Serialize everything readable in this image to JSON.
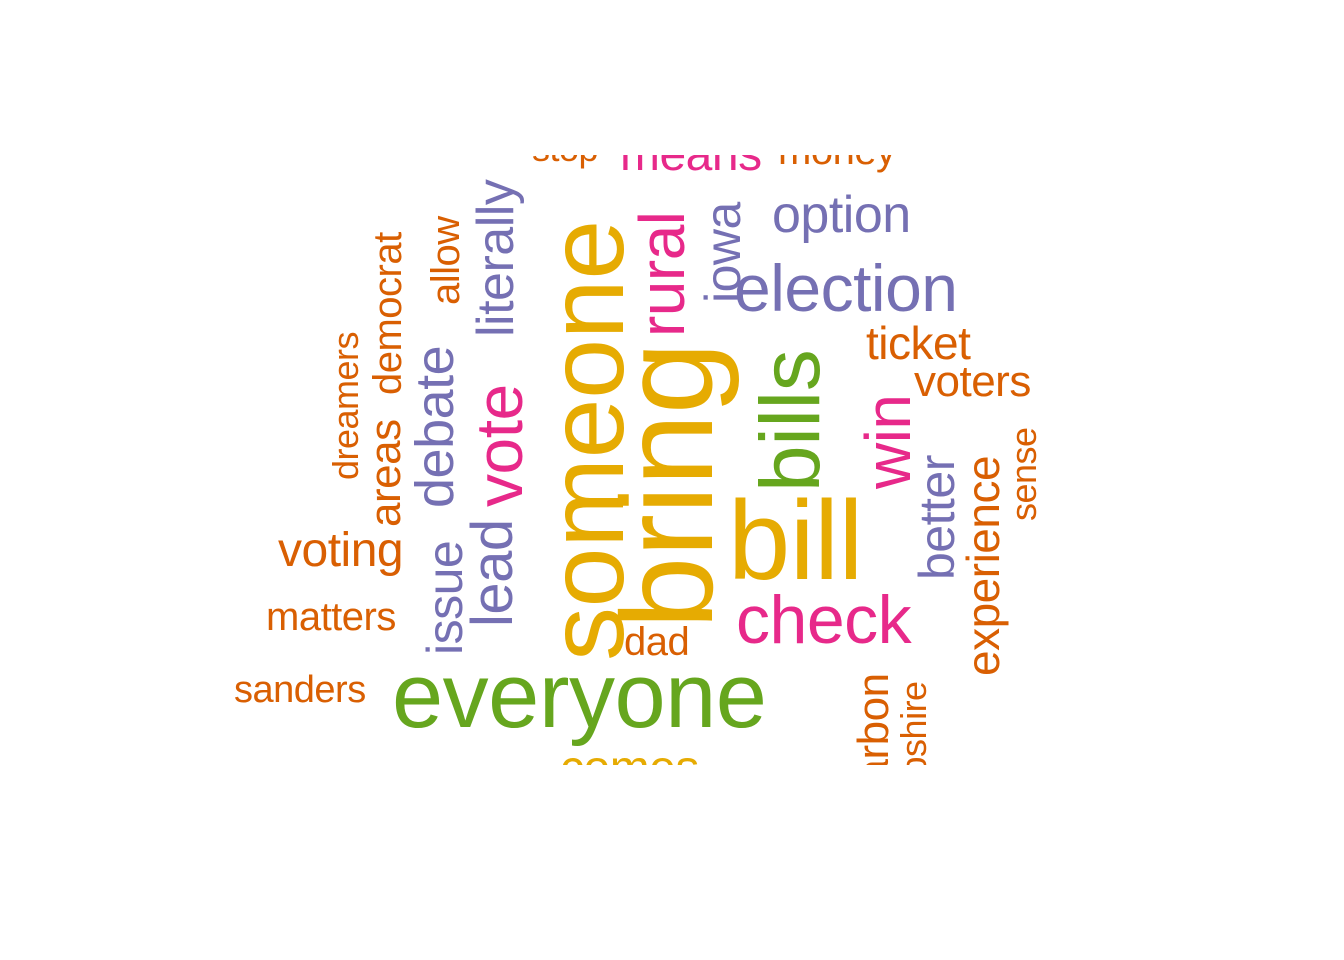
{
  "words": [
    {
      "text": "someone",
      "color": "#e6ab02"
    },
    {
      "text": "bring",
      "color": "#e6ab02"
    },
    {
      "text": "everyone",
      "color": "#66a61e"
    },
    {
      "text": "bill",
      "color": "#e6ab02"
    },
    {
      "text": "bills",
      "color": "#66a61e"
    },
    {
      "text": "election",
      "color": "#7570b3"
    },
    {
      "text": "check",
      "color": "#e7298a"
    },
    {
      "text": "vote",
      "color": "#e7298a"
    },
    {
      "text": "rural",
      "color": "#e7298a"
    },
    {
      "text": "win",
      "color": "#e7298a"
    },
    {
      "text": "option",
      "color": "#7570b3"
    },
    {
      "text": "debate",
      "color": "#7570b3"
    },
    {
      "text": "lead",
      "color": "#7570b3"
    },
    {
      "text": "literally",
      "color": "#7570b3"
    },
    {
      "text": "issue",
      "color": "#7570b3"
    },
    {
      "text": "iowa",
      "color": "#7570b3"
    },
    {
      "text": "better",
      "color": "#7570b3"
    },
    {
      "text": "means",
      "color": "#e7298a"
    },
    {
      "text": "money",
      "color": "#d95f02"
    },
    {
      "text": "stop",
      "color": "#d95f02"
    },
    {
      "text": "ticket",
      "color": "#d95f02"
    },
    {
      "text": "voters",
      "color": "#d95f02"
    },
    {
      "text": "experience",
      "color": "#d95f02"
    },
    {
      "text": "sense",
      "color": "#d95f02"
    },
    {
      "text": "voting",
      "color": "#d95f02"
    },
    {
      "text": "matters",
      "color": "#d95f02"
    },
    {
      "text": "sanders",
      "color": "#d95f02"
    },
    {
      "text": "dad",
      "color": "#d95f02"
    },
    {
      "text": "areas",
      "color": "#d95f02"
    },
    {
      "text": "democrat",
      "color": "#d95f02"
    },
    {
      "text": "dreamers",
      "color": "#d95f02"
    },
    {
      "text": "allow",
      "color": "#d95f02"
    },
    {
      "text": "carbon",
      "color": "#d95f02"
    },
    {
      "text": "hampshire",
      "color": "#d95f02"
    },
    {
      "text": "comes",
      "color": "#e6ab02"
    }
  ]
}
